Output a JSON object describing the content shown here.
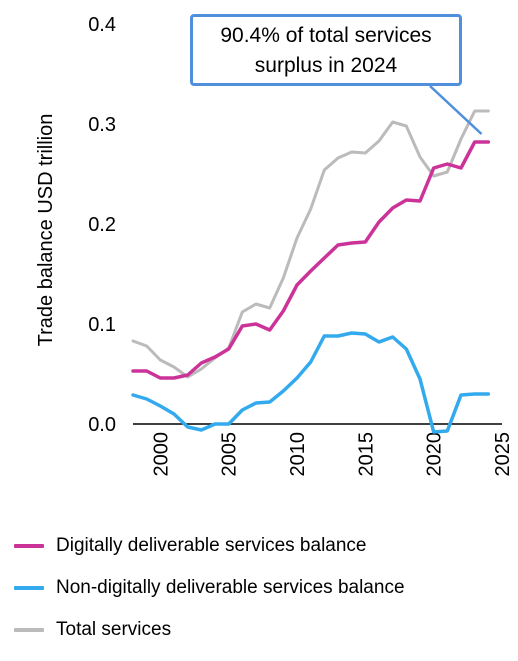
{
  "chart_data": {
    "type": "line",
    "ylabel": "Trade balance USD trillion",
    "xlabel": "",
    "ylim": [
      0.0,
      0.4
    ],
    "xlim": [
      1998,
      2025
    ],
    "yticks": [
      0.0,
      0.1,
      0.2,
      0.3,
      0.4
    ],
    "ytick_labels": [
      "0.0",
      "0.1",
      "0.2",
      "0.3",
      "0.4"
    ],
    "xticks": [
      2000,
      2005,
      2010,
      2015,
      2020,
      2025
    ],
    "xtick_labels": [
      "2000",
      "2005",
      "2010",
      "2015",
      "2020",
      "2025"
    ],
    "grid": false,
    "legend_position": "bottom",
    "annotation": {
      "text_line1": "90.4% of total services",
      "text_line2": "surplus in 2024",
      "target_x": 2023.5,
      "target_y": 0.29
    },
    "series": [
      {
        "name": "Digitally deliverable services balance",
        "color": "#cc3399",
        "x": [
          1998,
          1999,
          2000,
          2001,
          2002,
          2003,
          2004,
          2005,
          2006,
          2007,
          2008,
          2009,
          2010,
          2011,
          2012,
          2013,
          2014,
          2015,
          2016,
          2017,
          2018,
          2019,
          2020,
          2021,
          2022,
          2023,
          2024
        ],
        "y": [
          0.053,
          0.053,
          0.046,
          0.046,
          0.049,
          0.061,
          0.067,
          0.075,
          0.098,
          0.1,
          0.094,
          0.113,
          0.139,
          0.153,
          0.166,
          0.179,
          0.181,
          0.182,
          0.202,
          0.216,
          0.224,
          0.223,
          0.256,
          0.26,
          0.256,
          0.282,
          0.282
        ]
      },
      {
        "name": "Non-digitally deliverable services balance",
        "color": "#33aaee",
        "x": [
          1998,
          1999,
          2000,
          2001,
          2002,
          2003,
          2004,
          2005,
          2006,
          2007,
          2008,
          2009,
          2010,
          2011,
          2012,
          2013,
          2014,
          2015,
          2016,
          2017,
          2018,
          2019,
          2020,
          2021,
          2022,
          2023,
          2024
        ],
        "y": [
          0.029,
          0.025,
          0.018,
          0.01,
          -0.003,
          -0.006,
          0.0,
          0.0,
          0.014,
          0.021,
          0.022,
          0.033,
          0.046,
          0.062,
          0.088,
          0.088,
          0.091,
          0.09,
          0.082,
          0.087,
          0.075,
          0.045,
          -0.008,
          -0.007,
          0.029,
          0.03,
          0.03
        ]
      },
      {
        "name": "Total services",
        "color": "#bbbbbb",
        "x": [
          1998,
          1999,
          2000,
          2001,
          2002,
          2003,
          2004,
          2005,
          2006,
          2007,
          2008,
          2009,
          2010,
          2011,
          2012,
          2013,
          2014,
          2015,
          2016,
          2017,
          2018,
          2019,
          2020,
          2021,
          2022,
          2023,
          2024
        ],
        "y": [
          0.083,
          0.078,
          0.064,
          0.057,
          0.047,
          0.055,
          0.066,
          0.076,
          0.112,
          0.12,
          0.116,
          0.146,
          0.186,
          0.215,
          0.254,
          0.266,
          0.272,
          0.271,
          0.283,
          0.302,
          0.298,
          0.267,
          0.248,
          0.252,
          0.285,
          0.313,
          0.313
        ]
      }
    ]
  }
}
